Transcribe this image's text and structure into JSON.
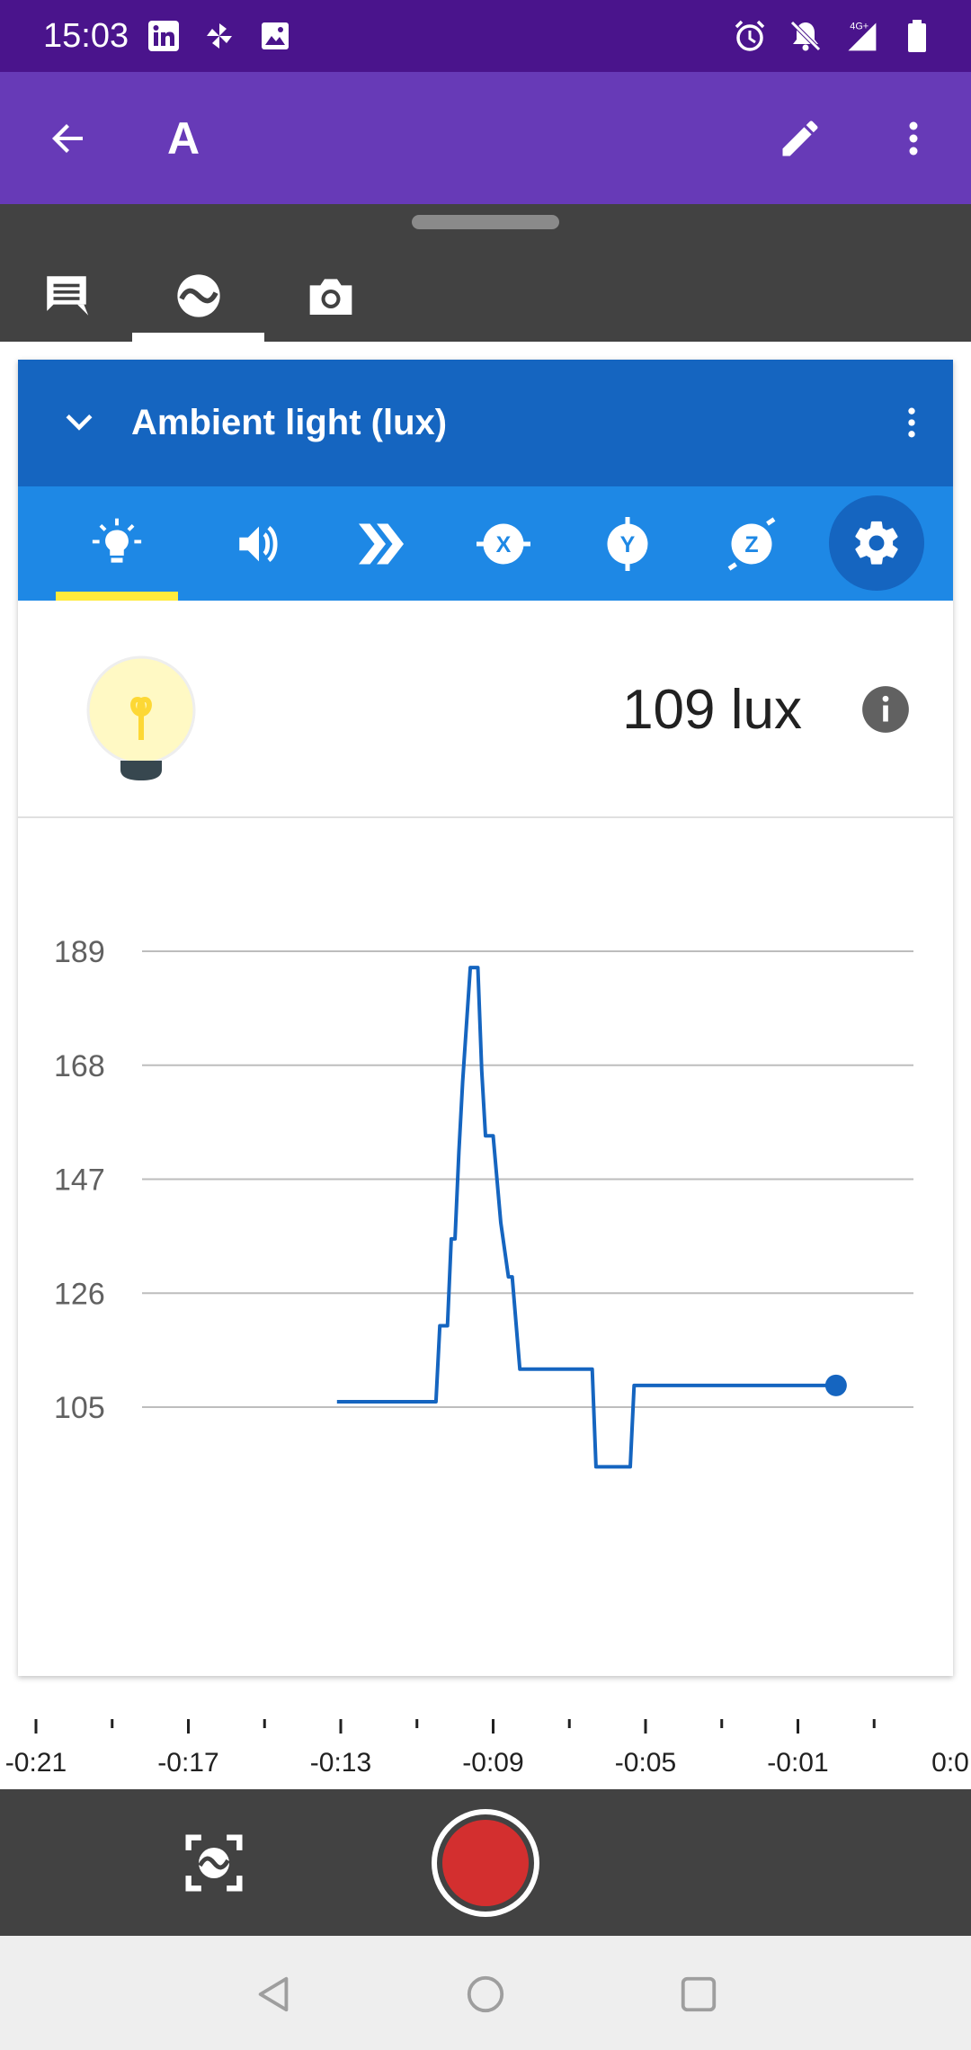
{
  "status_bar": {
    "time": "15:03",
    "left_icons": [
      "linkedin-icon",
      "pinwheel-icon",
      "image-icon"
    ],
    "right_icons": [
      "alarm-icon",
      "notifications-off-icon",
      "network-4g-icon",
      "battery-icon"
    ],
    "network_label": "4G+"
  },
  "app_bar": {
    "title": "A",
    "back_icon": "arrow-back-icon",
    "edit_icon": "edit-icon",
    "more_icon": "more-vert-icon"
  },
  "drawer_tabs": [
    {
      "name": "notes",
      "icon": "note-icon",
      "active": false
    },
    {
      "name": "sensors",
      "icon": "sensor-wave-icon",
      "active": true
    },
    {
      "name": "camera",
      "icon": "camera-icon",
      "active": false
    }
  ],
  "sensor_card": {
    "title": "Ambient light (lux)",
    "sensor_tabs": [
      {
        "name": "ambient-light",
        "icon": "lightbulb-icon",
        "active": true
      },
      {
        "name": "sound",
        "icon": "volume-icon",
        "active": false
      },
      {
        "name": "linear-acceleration",
        "icon": "chevrons-icon",
        "active": false
      },
      {
        "name": "accel-x",
        "icon": "x-axis-icon",
        "label": "X",
        "active": false
      },
      {
        "name": "accel-y",
        "icon": "y-axis-icon",
        "label": "Y",
        "active": false
      },
      {
        "name": "accel-z",
        "icon": "z-axis-icon",
        "label": "Z",
        "active": false
      }
    ],
    "settings_icon": "gear-icon",
    "reading": "109 lux",
    "info_icon": "info-icon"
  },
  "chart_data": {
    "type": "line",
    "title": "",
    "xlabel": "",
    "ylabel": "",
    "y_ticks": [
      189,
      168,
      147,
      126,
      105
    ],
    "ylim": [
      94,
      192
    ],
    "x_ticks": [
      "-0:21",
      "-0:17",
      "-0:13",
      "-0:09",
      "-0:05",
      "-0:01",
      "0:0"
    ],
    "xlim": [
      -22.4,
      1.4
    ],
    "grid": true,
    "color": "#1565c0",
    "series": [
      {
        "x": [
          -13.1,
          -10.5,
          -10.4,
          -10.2,
          -10.1,
          -10.0,
          -9.9,
          -9.8,
          -9.6,
          -9.4,
          -9.3,
          -9.2,
          -9.0,
          -8.8,
          -8.6,
          -8.5,
          -8.3,
          -8.0,
          -7.6,
          -7.5,
          -6.4,
          -6.3,
          -5.4,
          -5.3,
          -3.2,
          -2.4,
          -1.0,
          0.0
        ],
        "y": [
          106,
          106,
          120,
          120,
          136,
          136,
          152,
          165,
          186,
          186,
          167,
          155,
          155,
          139,
          129,
          129,
          112,
          112,
          112,
          112,
          112,
          94,
          94,
          109,
          109,
          109,
          109,
          109
        ]
      }
    ]
  },
  "controls": {
    "snapshot_icon": "snapshot-icon",
    "record_icon": "record-icon",
    "record_color": "#d32f2f"
  },
  "nav_bar": {
    "back_icon": "nav-back-icon",
    "home_icon": "nav-home-icon",
    "recents_icon": "nav-recents-icon"
  }
}
